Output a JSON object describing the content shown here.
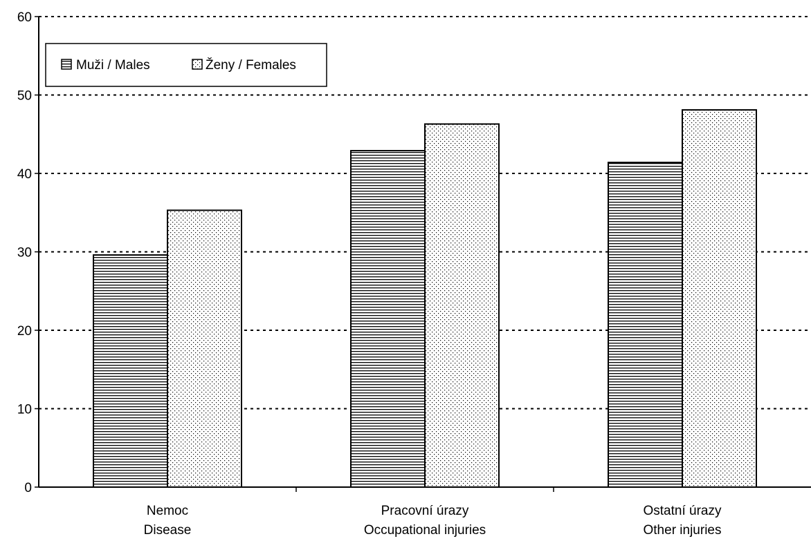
{
  "chart_data": {
    "type": "bar",
    "categories": [
      [
        "Nemoc",
        "Disease"
      ],
      [
        "Pracovní úrazy",
        "Occupational injuries"
      ],
      [
        "Ostatní úrazy",
        "Other injuries"
      ]
    ],
    "series": [
      {
        "name": "Muži / Males",
        "values": [
          29.6,
          42.9,
          41.4
        ],
        "pattern": "horizontal-lines"
      },
      {
        "name": "Ženy / Females",
        "values": [
          35.3,
          46.3,
          48.1
        ],
        "pattern": "dots"
      }
    ],
    "y_ticks": [
      "0",
      "10",
      "20",
      "30",
      "40",
      "50",
      "60"
    ],
    "ylim": [
      0,
      60
    ],
    "grid": "horizontal dotted",
    "legend_position": "top-left",
    "title": "",
    "xlabel": "",
    "ylabel": ""
  }
}
